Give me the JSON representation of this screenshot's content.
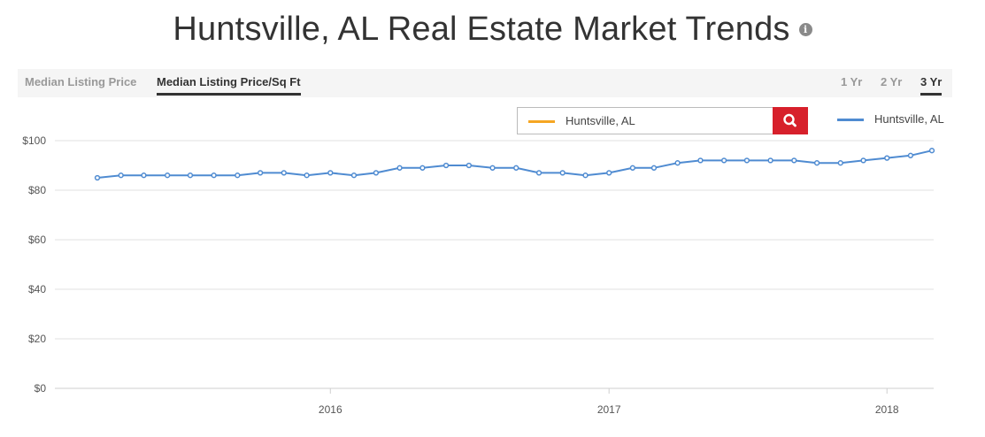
{
  "header": {
    "title": "Huntsville, AL Real Estate Market Trends",
    "info_icon": "info-circle-icon"
  },
  "tabs": [
    {
      "label": "Median Listing Price",
      "active": false
    },
    {
      "label": "Median Listing Price/Sq Ft",
      "active": true
    }
  ],
  "ranges": [
    {
      "label": "1 Yr",
      "active": false
    },
    {
      "label": "2 Yr",
      "active": false
    },
    {
      "label": "3 Yr",
      "active": true
    }
  ],
  "search": {
    "value": "Huntsville, AL",
    "swatch_color": "#f5a623",
    "button_icon": "search-icon",
    "button_color": "#d7202b"
  },
  "legend": {
    "label": "Huntsville, AL",
    "color": "#4f8bd1"
  },
  "chart_data": {
    "type": "line",
    "title": "",
    "xlabel": "",
    "ylabel": "",
    "ylim": [
      0,
      100
    ],
    "xlim": [
      "2015-03-01",
      "2018-02-01"
    ],
    "y_ticks": [
      "$0",
      "$20",
      "$40",
      "$60",
      "$80",
      "$100"
    ],
    "y_tick_values": [
      0,
      20,
      40,
      60,
      80,
      100
    ],
    "x_ticks": [
      {
        "label": "2016",
        "date": "2016-01-01"
      },
      {
        "label": "2017",
        "date": "2017-01-01"
      },
      {
        "label": "2018",
        "date": "2018-01-01"
      }
    ],
    "grid": true,
    "legend_position": "top-right",
    "series": [
      {
        "name": "Huntsville, AL",
        "color": "#4f8bd1",
        "points": [
          {
            "x": "2015-03-01",
            "y": 85
          },
          {
            "x": "2015-04-01",
            "y": 86
          },
          {
            "x": "2015-05-01",
            "y": 86
          },
          {
            "x": "2015-06-01",
            "y": 86
          },
          {
            "x": "2015-07-01",
            "y": 86
          },
          {
            "x": "2015-08-01",
            "y": 86
          },
          {
            "x": "2015-09-01",
            "y": 86
          },
          {
            "x": "2015-10-01",
            "y": 87
          },
          {
            "x": "2015-11-01",
            "y": 87
          },
          {
            "x": "2015-12-01",
            "y": 86
          },
          {
            "x": "2016-01-01",
            "y": 87
          },
          {
            "x": "2016-02-01",
            "y": 86
          },
          {
            "x": "2016-03-01",
            "y": 87
          },
          {
            "x": "2016-04-01",
            "y": 89
          },
          {
            "x": "2016-05-01",
            "y": 89
          },
          {
            "x": "2016-06-01",
            "y": 90
          },
          {
            "x": "2016-07-01",
            "y": 90
          },
          {
            "x": "2016-08-01",
            "y": 89
          },
          {
            "x": "2016-09-01",
            "y": 89
          },
          {
            "x": "2016-10-01",
            "y": 87
          },
          {
            "x": "2016-11-01",
            "y": 87
          },
          {
            "x": "2016-12-01",
            "y": 86
          },
          {
            "x": "2017-01-01",
            "y": 87
          },
          {
            "x": "2017-02-01",
            "y": 89
          },
          {
            "x": "2017-03-01",
            "y": 89
          },
          {
            "x": "2017-04-01",
            "y": 91
          },
          {
            "x": "2017-05-01",
            "y": 92
          },
          {
            "x": "2017-06-01",
            "y": 92
          },
          {
            "x": "2017-07-01",
            "y": 92
          },
          {
            "x": "2017-08-01",
            "y": 92
          },
          {
            "x": "2017-09-01",
            "y": 92
          },
          {
            "x": "2017-10-01",
            "y": 91
          },
          {
            "x": "2017-11-01",
            "y": 91
          },
          {
            "x": "2017-12-01",
            "y": 92
          },
          {
            "x": "2018-01-01",
            "y": 93
          },
          {
            "x": "2018-02-01",
            "y": 94
          },
          {
            "x": "2018-03-01",
            "y": 96
          }
        ]
      }
    ]
  }
}
